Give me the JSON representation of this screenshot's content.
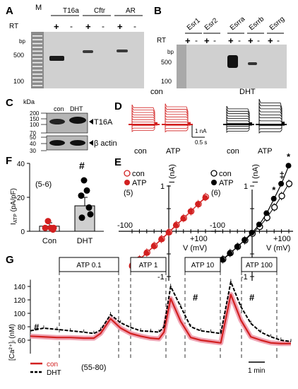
{
  "panel_a": {
    "letter": "A",
    "ladder_label": "M",
    "genes": [
      "T16a",
      "Cftr",
      "AR"
    ],
    "rt_label": "RT",
    "plus": "+",
    "minus": "-",
    "bp_label": "bp",
    "bp_ticks": [
      "500",
      "100"
    ]
  },
  "panel_b": {
    "letter": "B",
    "genes": [
      "Esr1",
      "Esr2",
      "Esrra",
      "Esrrb",
      "Esrrg"
    ],
    "rt_label": "RT",
    "bp_label": "bp",
    "bp_ticks": [
      "500",
      "100"
    ]
  },
  "panel_c": {
    "letter": "C",
    "kda_label": "kDa",
    "lanes": [
      "con",
      "DHT"
    ],
    "kda_ticks": [
      "200",
      "150",
      "100",
      "70",
      "50",
      "40",
      "30"
    ],
    "bands": [
      "T16A",
      "β actin"
    ]
  },
  "panel_d": {
    "letter": "D",
    "group_con": "con",
    "group_dht": "DHT",
    "trace_labels": [
      "con",
      "ATP",
      "con",
      "ATP"
    ],
    "scale_current": "1 nA",
    "scale_time": "0.5 s"
  },
  "panel_e": {
    "letter": "E",
    "legend": [
      "con",
      "ATP"
    ],
    "n_left": "(5)",
    "n_right": "(6)",
    "y_axis": "I (nA)",
    "x_axis": "V (mV)",
    "tick_neg100": "-100",
    "tick_pos100": "+100",
    "tick_1": "1",
    "tick_neg1": "-1",
    "star": "*",
    "dagger": "‡"
  },
  "panel_f": {
    "letter": "F",
    "ylabel_main": "I",
    "ylabel_sub": "ATP",
    "ylabel_unit": " (pA/pF)",
    "n_label": "(5-6)",
    "hash": "#",
    "y_ticks": [
      "0",
      "20",
      "40"
    ],
    "categories": [
      "Con",
      "DHT"
    ]
  },
  "panel_g": {
    "letter": "G",
    "ylabel": "[Ca²⁺]ᵢ (nM)",
    "y_ticks": [
      "60",
      "80",
      "100",
      "120",
      "140"
    ],
    "atp_boxes": [
      "ATP 0.1",
      "ATP 1",
      "ATP 10",
      "ATP 100"
    ],
    "hash": "#",
    "legend": [
      "con",
      "DHT"
    ],
    "n_label": "(55-80)",
    "scale": "1 min"
  },
  "colors": {
    "con": "#d22020",
    "dht": "#000000",
    "band": "#111111",
    "gel_bg": "#cfcfcf"
  },
  "chart_data": [
    {
      "type": "bar",
      "panel": "F",
      "categories": [
        "Con",
        "DHT"
      ],
      "values": [
        3,
        15
      ],
      "points": [
        [
          2,
          1,
          2,
          6,
          2
        ],
        [
          8,
          14,
          10,
          21,
          24,
          30
        ]
      ],
      "ylim": [
        0,
        40
      ],
      "ylabel": "I ATP (pA/pF)"
    },
    {
      "type": "scatter",
      "panel": "E-left",
      "x": [
        -100,
        -80,
        -60,
        -40,
        -20,
        0,
        20,
        40,
        60,
        80,
        100
      ],
      "series": [
        {
          "name": "con",
          "values": [
            -0.75,
            -0.62,
            -0.47,
            -0.32,
            -0.17,
            -0.02,
            0.14,
            0.29,
            0.44,
            0.6,
            0.76
          ]
        },
        {
          "name": "ATP",
          "values": [
            -0.77,
            -0.63,
            -0.48,
            -0.33,
            -0.18,
            -0.03,
            0.13,
            0.28,
            0.44,
            0.6,
            0.74
          ]
        }
      ],
      "xlabel": "V (mV)",
      "ylabel": "I (nA)"
    },
    {
      "type": "scatter",
      "panel": "E-right",
      "x": [
        -100,
        -80,
        -60,
        -40,
        -20,
        0,
        20,
        40,
        60,
        80,
        100
      ],
      "series": [
        {
          "name": "con",
          "values": [
            -0.75,
            -0.62,
            -0.48,
            -0.34,
            -0.2,
            -0.05,
            0.1,
            0.3,
            0.53,
            0.78,
            1.05
          ]
        },
        {
          "name": "ATP",
          "values": [
            -0.76,
            -0.63,
            -0.49,
            -0.34,
            -0.19,
            -0.03,
            0.15,
            0.4,
            0.72,
            1.05,
            1.45
          ]
        }
      ],
      "xlabel": "V (mV)",
      "ylabel": "I (nA)"
    },
    {
      "type": "line",
      "panel": "G",
      "x": [
        0,
        40,
        80,
        120,
        160,
        190,
        210,
        240,
        270,
        300,
        330,
        360,
        385,
        400,
        420,
        450,
        480,
        510,
        540,
        570,
        600,
        630,
        660,
        690,
        720,
        750,
        780
      ],
      "series": [
        {
          "name": "con",
          "values": [
            66,
            65,
            64,
            64,
            63,
            63,
            70,
            92,
            78,
            70,
            66,
            63,
            62,
            72,
            122,
            88,
            64,
            60,
            58,
            56,
            128,
            90,
            65,
            60,
            56,
            55,
            55
          ]
        },
        {
          "name": "DHT",
          "values": [
            74,
            78,
            76,
            74,
            72,
            70,
            75,
            98,
            86,
            79,
            74,
            73,
            72,
            80,
            140,
            110,
            80,
            74,
            72,
            70,
            147,
            110,
            85,
            72,
            65,
            60,
            58
          ]
        }
      ],
      "ylabel": "[Ca²⁺]ᵢ (nM)",
      "ylim": [
        40,
        160
      ]
    }
  ]
}
